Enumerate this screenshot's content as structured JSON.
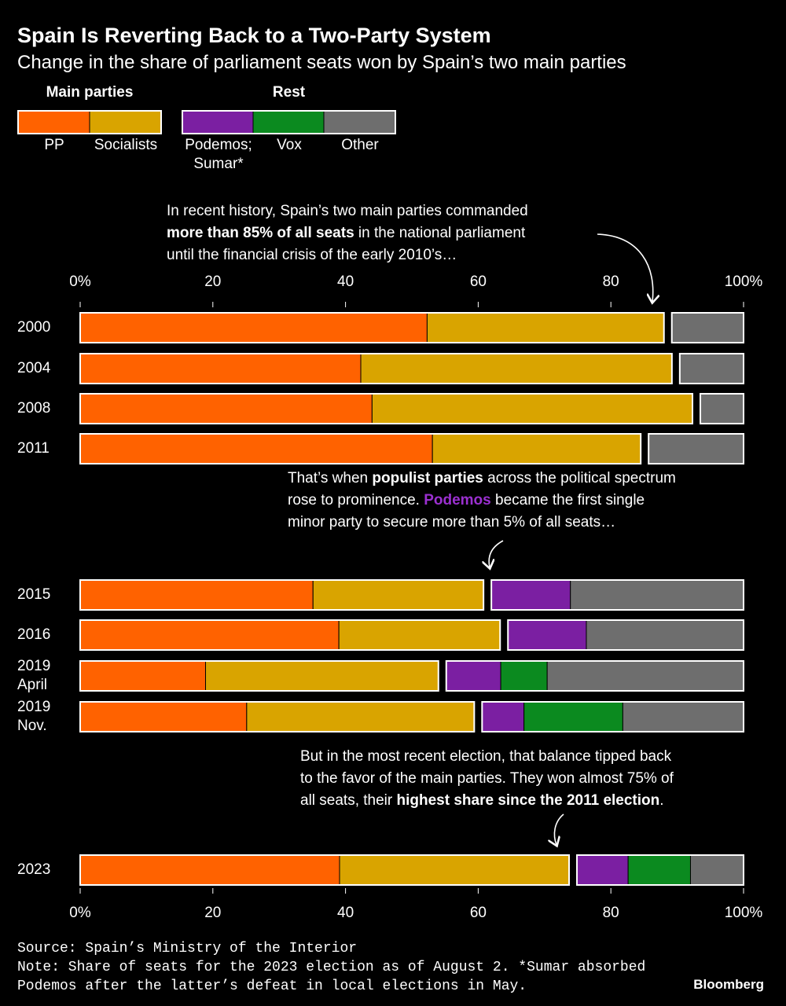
{
  "chart_data": {
    "type": "bar",
    "orientation": "horizontal",
    "stacked": true,
    "title": "Spain Is Reverting Back to a Two-Party System",
    "subtitle": "Change in the share of parliament seats won by Spain’s two main parties",
    "categories": [
      "2000",
      "2004",
      "2008",
      "2011",
      "2015",
      "2016",
      "2019 April",
      "2019 Nov.",
      "2023"
    ],
    "series": [
      {
        "name": "PP",
        "group": "Main parties",
        "color": "#ff6200",
        "values": [
          52.3,
          42.3,
          44.0,
          53.1,
          35.1,
          39.0,
          18.9,
          25.1,
          39.1
        ]
      },
      {
        "name": "Socialists",
        "group": "Main parties",
        "color": "#d9a400",
        "values": [
          35.7,
          46.9,
          48.3,
          31.4,
          25.7,
          24.3,
          35.1,
          34.3,
          34.6
        ]
      },
      {
        "name": "Podemos; Sumar*",
        "group": "Rest",
        "color": "#7b1fa2",
        "values": [
          null,
          null,
          null,
          null,
          13.1,
          13.0,
          9.4,
          7.5,
          8.9
        ]
      },
      {
        "name": "Vox",
        "group": "Rest",
        "color": "#0b8a1f",
        "values": [
          null,
          null,
          null,
          null,
          null,
          null,
          7.0,
          14.9,
          9.4
        ]
      },
      {
        "name": "Other",
        "group": "Rest",
        "color": "#6e6e6e",
        "values": [
          12.0,
          10.8,
          7.7,
          15.5,
          26.1,
          23.7,
          29.6,
          18.2,
          8.0
        ]
      }
    ],
    "xlim": [
      0,
      100
    ],
    "xticks": [
      {
        "value": 0,
        "label": "0%"
      },
      20,
      40,
      60,
      80,
      {
        "value": 100,
        "label": "100%"
      }
    ],
    "annotations": [
      {
        "lines": [
          [
            {
              "text": "In recent history, Spain’s two main parties commanded"
            }
          ],
          [
            {
              "text": "more than 85% of all seats",
              "bold": true
            },
            {
              "text": " in the national parliament"
            }
          ],
          [
            {
              "text": "until the financial crisis of the early 2010’s…"
            }
          ]
        ]
      },
      {
        "lines": [
          [
            {
              "text": "That’s when "
            },
            {
              "text": "populist parties",
              "bold": true
            },
            {
              "text": " across the political spectrum"
            }
          ],
          [
            {
              "text": "rose to prominence. "
            },
            {
              "text": "Podemos",
              "bold": true,
              "color": "#9b30d0"
            },
            {
              "text": " became the first single"
            }
          ],
          [
            {
              "text": "minor party to secure more than 5% of all seats…"
            }
          ]
        ]
      },
      {
        "lines": [
          [
            {
              "text": "But in the most recent election, that balance tipped back"
            }
          ],
          [
            {
              "text": "to the favor of the main parties. They won almost 75% of"
            }
          ],
          [
            {
              "text": "all seats, their "
            },
            {
              "text": "highest share since the 2011 election",
              "bold": true
            },
            {
              "text": "."
            }
          ]
        ]
      }
    ],
    "source": "Source: Spain’s Ministry of the Interior",
    "note": "Note: Share of seats for the 2023 election as of August 2. *Sumar absorbed Podemos after the latter’s defeat in local elections in May.",
    "brand": "Bloomberg"
  }
}
